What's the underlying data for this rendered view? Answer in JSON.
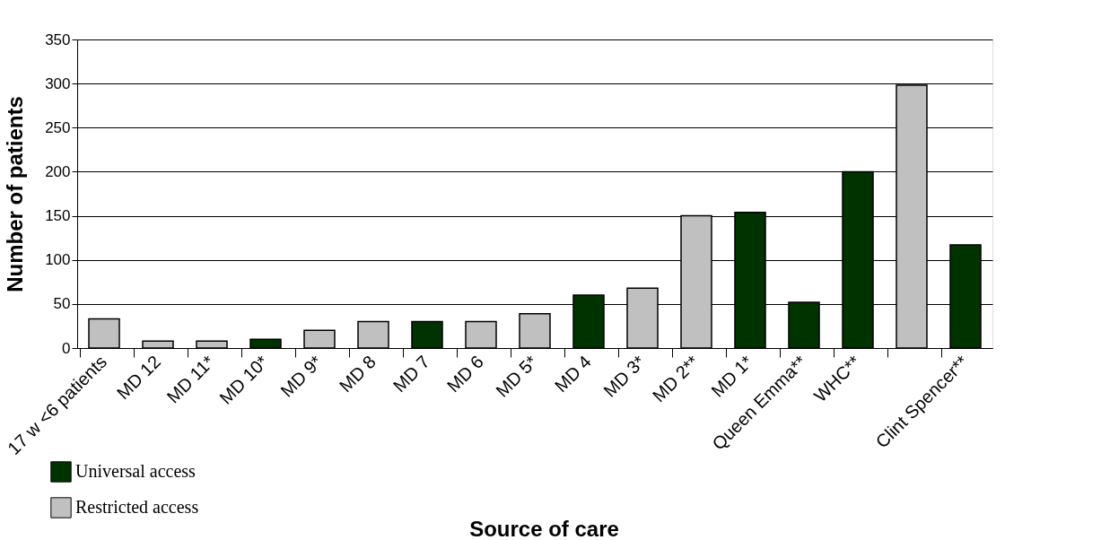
{
  "chart_data": {
    "type": "bar",
    "xlabel": "Source of care",
    "ylabel": "Number of patients",
    "categories": [
      "17 w <6 patients",
      "MD 12",
      "MD 11*",
      "MD 10*",
      "MD 9*",
      "MD 8",
      "MD 7",
      "MD 6",
      "MD 5*",
      "MD 4",
      "MD 3*",
      "MD 2**",
      "MD 1*",
      "Queen Emma**",
      "WHC**",
      null,
      "Clint Spencer**"
    ],
    "series": [
      {
        "name": "Universal access",
        "color": "#003300",
        "values": [
          null,
          null,
          null,
          10,
          null,
          null,
          30,
          null,
          null,
          60,
          null,
          null,
          154,
          52,
          200,
          null,
          117
        ]
      },
      {
        "name": "Restricted access",
        "color": "#c0c0c0",
        "values": [
          33,
          8,
          8,
          null,
          20,
          30,
          null,
          30,
          39,
          null,
          68,
          150,
          null,
          null,
          null,
          298,
          null
        ]
      }
    ],
    "ylim": [
      0,
      350
    ],
    "yticks": [
      0,
      50,
      100,
      150,
      200,
      250,
      300,
      350
    ],
    "grid": "y",
    "legend": "bottom left"
  }
}
